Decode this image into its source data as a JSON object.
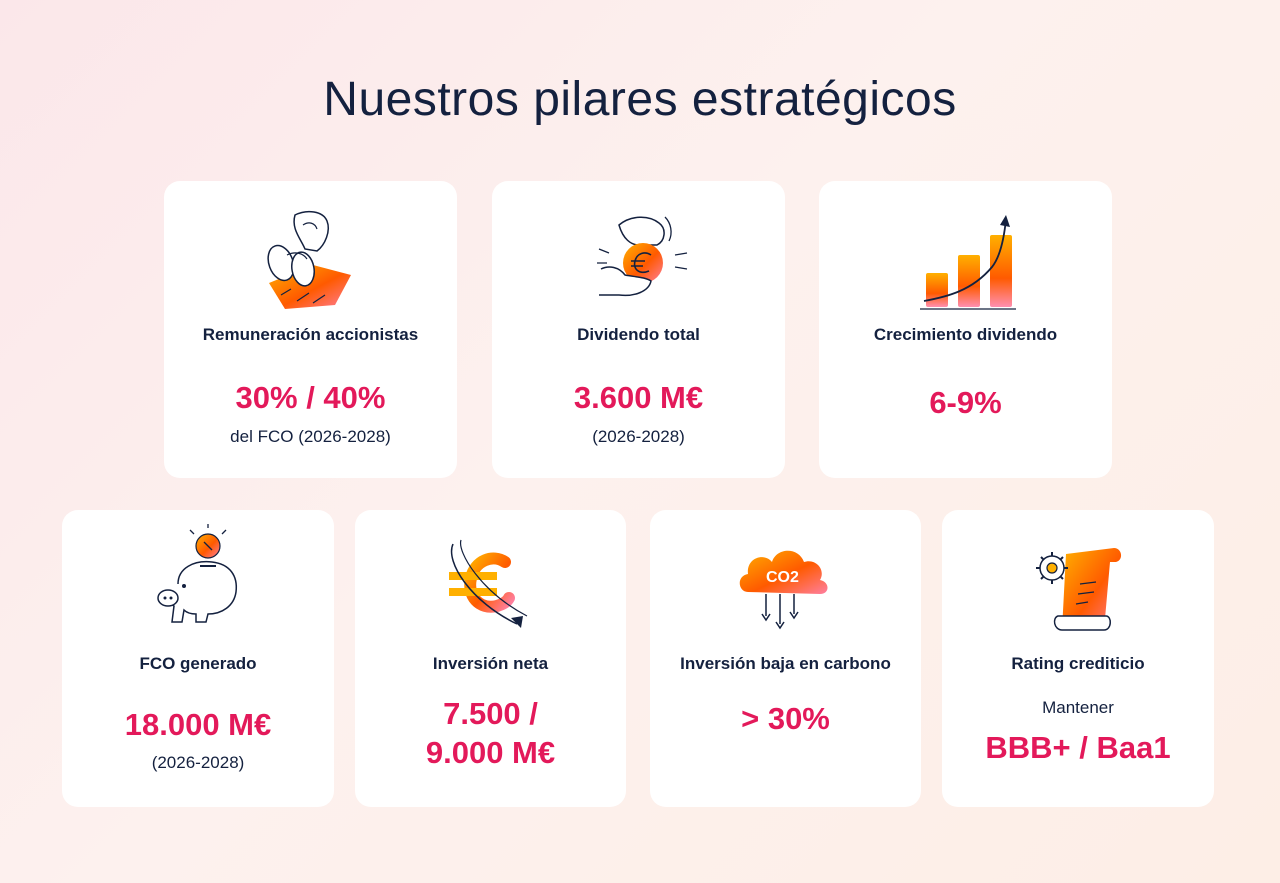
{
  "title": "Nuestros pilares estratégicos",
  "colors": {
    "accent": "#e3195a",
    "navy": "#14213f",
    "orange": "#ff6a00"
  },
  "cards": [
    {
      "icon": "beach-relax-icon",
      "label": "Remuneración accionistas",
      "value": "30% / 40%",
      "sub": "del FCO (2026-2028)"
    },
    {
      "icon": "hand-euro-coin-icon",
      "label": "Dividendo total",
      "value": "3.600 M€",
      "sub": "(2026-2028)"
    },
    {
      "icon": "growth-bars-icon",
      "label": "Crecimiento dividendo",
      "value": "6-9%"
    },
    {
      "icon": "piggy-bank-icon",
      "label": "FCO generado",
      "value": "18.000 M€",
      "sub": "(2026-2028)"
    },
    {
      "icon": "euro-orbit-icon",
      "label": "Inversión neta",
      "value_line1": "7.500 /",
      "value_line2": "9.000 M€"
    },
    {
      "icon": "co2-cloud-icon",
      "icon_text": "CO2",
      "label": "Inversión baja en carbono",
      "value": ">  30%"
    },
    {
      "icon": "gear-document-icon",
      "label": "Rating crediticio",
      "pre": "Mantener",
      "value": "BBB+ / Baa1"
    }
  ]
}
